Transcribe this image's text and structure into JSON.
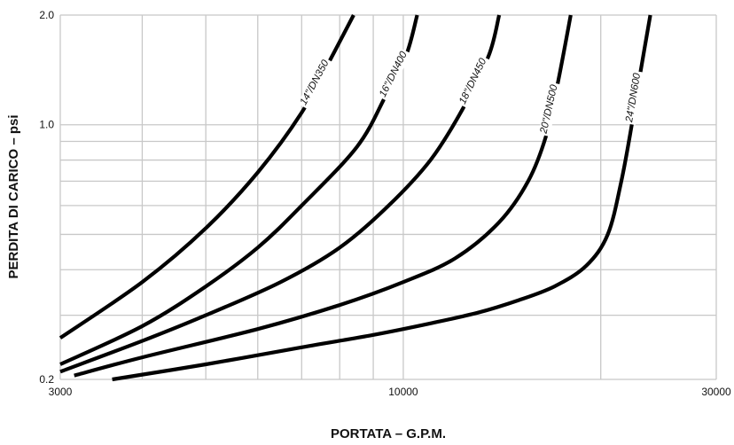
{
  "chart_data": {
    "type": "line",
    "xscale": "log",
    "yscale": "log",
    "xlim": [
      3000,
      30000
    ],
    "ylim": [
      0.2,
      2.0
    ],
    "xlabel": "PORTATA – G.P.M.",
    "ylabel": "PERDITA DI CARICO – psi",
    "xticks": [
      3000,
      10000,
      30000
    ],
    "xtick_labels": [
      "3000",
      "10000",
      "30000"
    ],
    "yticks": [
      0.2,
      1.0,
      2.0
    ],
    "ytick_labels": [
      "0.2",
      "1.0",
      "2.0"
    ],
    "grid": true,
    "series": [
      {
        "name": "14\"/DN350",
        "points": [
          [
            3000,
            0.26
          ],
          [
            4000,
            0.37
          ],
          [
            5000,
            0.52
          ],
          [
            6000,
            0.74
          ],
          [
            7000,
            1.08
          ],
          [
            7800,
            1.55
          ],
          [
            8400,
            2.0
          ]
        ]
      },
      {
        "name": "16\"/DN400",
        "points": [
          [
            3000,
            0.22
          ],
          [
            4000,
            0.28
          ],
          [
            5000,
            0.36
          ],
          [
            6000,
            0.46
          ],
          [
            7000,
            0.6
          ],
          [
            8500,
            0.87
          ],
          [
            9400,
            1.2
          ],
          [
            10100,
            1.55
          ],
          [
            10500,
            2.0
          ]
        ]
      },
      {
        "name": "18\"/DN450",
        "points": [
          [
            3000,
            0.21
          ],
          [
            4000,
            0.255
          ],
          [
            5000,
            0.3
          ],
          [
            6500,
            0.37
          ],
          [
            8000,
            0.46
          ],
          [
            9500,
            0.6
          ],
          [
            11000,
            0.8
          ],
          [
            12300,
            1.1
          ],
          [
            13500,
            1.55
          ],
          [
            14000,
            2.0
          ]
        ]
      },
      {
        "name": "20\"/DN500",
        "points": [
          [
            3150,
            0.205
          ],
          [
            4000,
            0.23
          ],
          [
            6000,
            0.275
          ],
          [
            8000,
            0.32
          ],
          [
            10000,
            0.37
          ],
          [
            12000,
            0.43
          ],
          [
            14000,
            0.54
          ],
          [
            15500,
            0.7
          ],
          [
            16500,
            0.93
          ],
          [
            17200,
            1.3
          ],
          [
            18000,
            2.0
          ]
        ]
      },
      {
        "name": "24\"/DN600",
        "points": [
          [
            3600,
            0.2
          ],
          [
            5000,
            0.22
          ],
          [
            7000,
            0.245
          ],
          [
            9000,
            0.265
          ],
          [
            11000,
            0.285
          ],
          [
            13000,
            0.305
          ],
          [
            15000,
            0.33
          ],
          [
            17000,
            0.36
          ],
          [
            19000,
            0.41
          ],
          [
            20500,
            0.5
          ],
          [
            21500,
            0.7
          ],
          [
            22300,
            1.0
          ],
          [
            23000,
            1.4
          ],
          [
            23800,
            2.0
          ]
        ]
      }
    ]
  }
}
